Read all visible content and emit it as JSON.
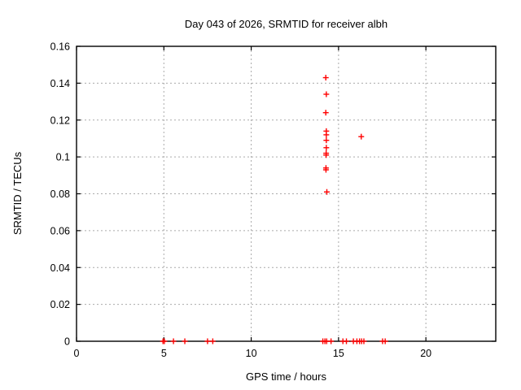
{
  "title": "Day 043 of 2026, SRMTID for receiver albh",
  "xlabel": "GPS time / hours",
  "ylabel": "SRMTID / TECUs",
  "colors": {
    "marker": "#ff0000",
    "grid": "#aaaaaa",
    "axis": "#000000",
    "text": "#000000",
    "background": "#ffffff"
  },
  "chart_data": {
    "type": "scatter",
    "title": "Day 043 of 2026, SRMTID for receiver albh",
    "xlabel": "GPS time / hours",
    "ylabel": "SRMTID / TECUs",
    "xlim": [
      0,
      24
    ],
    "ylim": [
      0,
      0.16
    ],
    "xticks": [
      "0",
      "5",
      "10",
      "15",
      "20"
    ],
    "yticks": [
      "0",
      "0.02",
      "0.04",
      "0.06",
      "0.08",
      "0.1",
      "0.12",
      "0.14",
      "0.16"
    ],
    "grid": true,
    "legend": "none",
    "marker": "plus",
    "series": [
      {
        "name": "SRMTID",
        "points": [
          [
            14.27,
            0.143
          ],
          [
            14.3,
            0.134
          ],
          [
            14.27,
            0.124
          ],
          [
            14.3,
            0.114
          ],
          [
            14.3,
            0.112
          ],
          [
            14.3,
            0.109
          ],
          [
            14.3,
            0.105
          ],
          [
            14.29,
            0.102
          ],
          [
            14.29,
            0.101
          ],
          [
            14.28,
            0.094
          ],
          [
            14.28,
            0.093
          ],
          [
            14.33,
            0.081
          ],
          [
            16.3,
            0.111
          ],
          [
            4.95,
            0
          ],
          [
            5.03,
            0
          ],
          [
            5.55,
            0
          ],
          [
            6.2,
            0
          ],
          [
            7.5,
            0
          ],
          [
            7.8,
            0
          ],
          [
            14.1,
            0
          ],
          [
            14.22,
            0
          ],
          [
            14.32,
            0
          ],
          [
            14.57,
            0
          ],
          [
            15.25,
            0
          ],
          [
            15.45,
            0
          ],
          [
            15.85,
            0
          ],
          [
            16.05,
            0
          ],
          [
            16.2,
            0
          ],
          [
            16.32,
            0
          ],
          [
            16.45,
            0
          ],
          [
            17.52,
            0
          ],
          [
            17.67,
            0
          ]
        ]
      }
    ]
  }
}
